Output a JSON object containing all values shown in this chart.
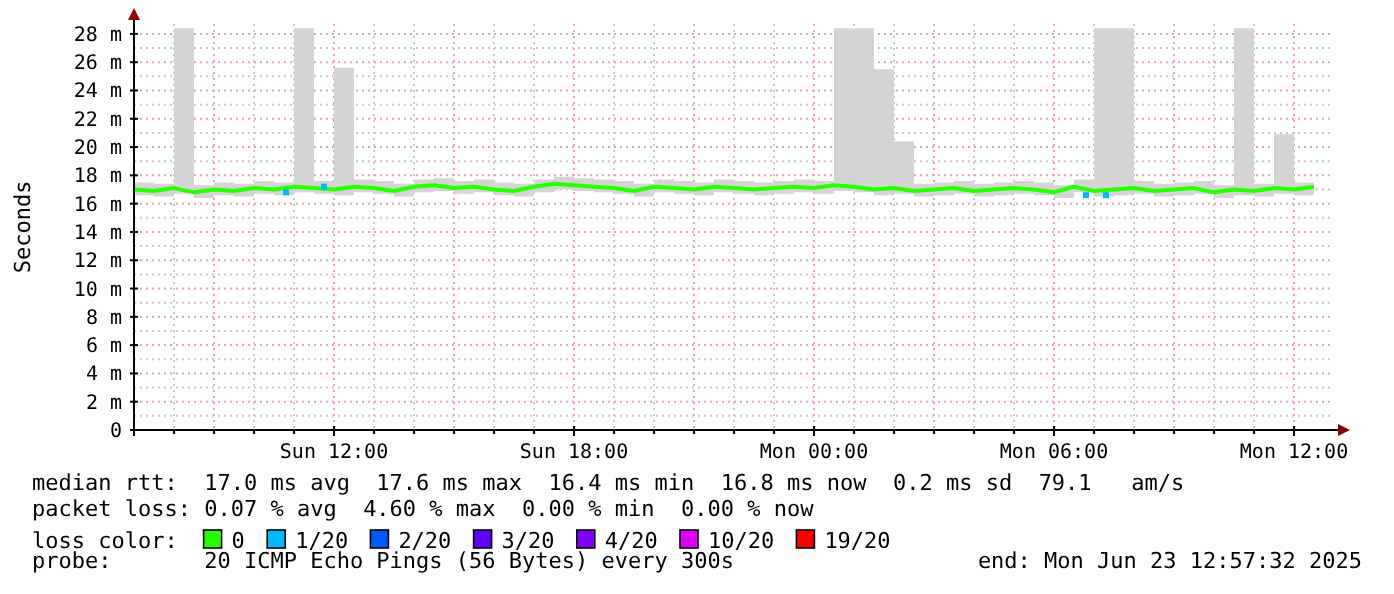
{
  "chart_data": {
    "type": "line",
    "ylabel": "Seconds",
    "legend_title": "loss color:",
    "legend": "bottom",
    "grid": true,
    "xlim": [
      "2025-06-22T07:00",
      "2025-06-23T13:00"
    ],
    "xticks": [
      {
        "value": "2025-06-22T12:00",
        "label": "Sun 12:00"
      },
      {
        "value": "2025-06-22T18:00",
        "label": "Sun 18:00"
      },
      {
        "value": "2025-06-23T00:00",
        "label": "Mon 00:00"
      },
      {
        "value": "2025-06-23T06:00",
        "label": "Mon 06:00"
      },
      {
        "value": "2025-06-23T12:00",
        "label": "Mon 12:00"
      }
    ],
    "ylim": [
      0,
      28.7
    ],
    "yticks": [
      {
        "value": 0,
        "label": "0"
      },
      {
        "value": 2,
        "label": "2 m"
      },
      {
        "value": 4,
        "label": "4 m"
      },
      {
        "value": 6,
        "label": "6 m"
      },
      {
        "value": 8,
        "label": "8 m"
      },
      {
        "value": 10,
        "label": "10 m"
      },
      {
        "value": 12,
        "label": "12 m"
      },
      {
        "value": 14,
        "label": "14 m"
      },
      {
        "value": 16,
        "label": "16 m"
      },
      {
        "value": 18,
        "label": "18 m"
      },
      {
        "value": 20,
        "label": "20 m"
      },
      {
        "value": 22,
        "label": "22 m"
      },
      {
        "value": 24,
        "label": "24 m"
      },
      {
        "value": 26,
        "label": "26 m"
      },
      {
        "value": 28,
        "label": "28 m"
      }
    ],
    "x": [
      "2025-06-22T07:00",
      "2025-06-22T07:30",
      "2025-06-22T08:00",
      "2025-06-22T08:30",
      "2025-06-22T09:00",
      "2025-06-22T09:30",
      "2025-06-22T10:00",
      "2025-06-22T10:30",
      "2025-06-22T11:00",
      "2025-06-22T11:30",
      "2025-06-22T12:00",
      "2025-06-22T12:30",
      "2025-06-22T13:00",
      "2025-06-22T13:30",
      "2025-06-22T14:00",
      "2025-06-22T14:30",
      "2025-06-22T15:00",
      "2025-06-22T15:30",
      "2025-06-22T16:00",
      "2025-06-22T16:30",
      "2025-06-22T17:00",
      "2025-06-22T17:30",
      "2025-06-22T18:00",
      "2025-06-22T18:30",
      "2025-06-22T19:00",
      "2025-06-22T19:30",
      "2025-06-22T20:00",
      "2025-06-22T20:30",
      "2025-06-22T21:00",
      "2025-06-22T21:30",
      "2025-06-22T22:00",
      "2025-06-22T22:30",
      "2025-06-22T23:00",
      "2025-06-22T23:30",
      "2025-06-23T00:00",
      "2025-06-23T00:30",
      "2025-06-23T01:00",
      "2025-06-23T01:30",
      "2025-06-23T02:00",
      "2025-06-23T02:30",
      "2025-06-23T03:00",
      "2025-06-23T03:30",
      "2025-06-23T04:00",
      "2025-06-23T04:30",
      "2025-06-23T05:00",
      "2025-06-23T05:30",
      "2025-06-23T06:00",
      "2025-06-23T06:30",
      "2025-06-23T07:00",
      "2025-06-23T07:30",
      "2025-06-23T08:00",
      "2025-06-23T08:30",
      "2025-06-23T09:00",
      "2025-06-23T09:30",
      "2025-06-23T10:00",
      "2025-06-23T10:30",
      "2025-06-23T11:00",
      "2025-06-23T11:30",
      "2025-06-23T12:00",
      "2025-06-23T12:30"
    ],
    "series": [
      {
        "name": "0",
        "color": "#26ff00",
        "values": [
          17.0,
          16.9,
          17.1,
          16.8,
          17.0,
          16.9,
          17.1,
          17.0,
          17.2,
          17.1,
          17.0,
          17.2,
          17.1,
          16.9,
          17.2,
          17.3,
          17.1,
          17.2,
          17.0,
          16.9,
          17.2,
          17.4,
          17.3,
          17.2,
          17.1,
          16.9,
          17.2,
          17.1,
          17.0,
          17.2,
          17.1,
          17.0,
          17.1,
          17.2,
          17.1,
          17.3,
          17.2,
          17.0,
          17.1,
          16.9,
          17.0,
          17.1,
          16.9,
          17.0,
          17.1,
          17.0,
          16.8,
          17.2,
          16.9,
          17.0,
          17.1,
          16.9,
          17.0,
          17.1,
          16.8,
          17.0,
          16.9,
          17.1,
          17.0,
          17.2
        ],
        "lower": [
          16.6,
          16.5,
          16.7,
          16.4,
          16.6,
          16.5,
          16.7,
          16.6,
          16.8,
          16.7,
          16.6,
          16.8,
          16.7,
          16.5,
          16.8,
          16.9,
          16.7,
          16.8,
          16.6,
          16.5,
          16.8,
          17.0,
          16.9,
          16.8,
          16.7,
          16.5,
          16.8,
          16.7,
          16.6,
          16.8,
          16.7,
          16.6,
          16.7,
          16.8,
          16.7,
          16.9,
          16.8,
          16.6,
          16.7,
          16.5,
          16.6,
          16.7,
          16.5,
          16.6,
          16.7,
          16.6,
          16.4,
          16.8,
          16.5,
          16.6,
          16.7,
          16.5,
          16.6,
          16.7,
          16.4,
          16.6,
          16.5,
          16.7,
          16.6,
          16.8
        ],
        "upper": [
          17.5,
          17.4,
          28.4,
          17.3,
          17.5,
          17.4,
          17.6,
          17.5,
          28.4,
          17.6,
          25.6,
          17.7,
          17.6,
          17.4,
          17.7,
          17.8,
          17.6,
          17.7,
          17.5,
          17.4,
          17.7,
          17.9,
          17.8,
          17.7,
          17.6,
          17.4,
          17.7,
          17.6,
          17.5,
          17.7,
          17.6,
          17.5,
          17.6,
          17.7,
          17.6,
          28.4,
          28.4,
          25.5,
          20.4,
          17.4,
          17.5,
          17.6,
          17.4,
          17.5,
          17.6,
          17.5,
          17.3,
          17.7,
          28.4,
          28.4,
          17.6,
          17.4,
          17.5,
          17.6,
          17.3,
          28.4,
          17.4,
          20.9,
          17.5,
          17.7
        ]
      },
      {
        "name": "1/20",
        "type": "scatter",
        "color": "#00b8ff",
        "x": [
          "2025-06-22T10:48",
          "2025-06-22T11:45",
          "2025-06-23T06:48",
          "2025-06-23T07:18"
        ],
        "values": [
          16.8,
          17.2,
          16.6,
          16.6
        ]
      },
      {
        "name": "2/20",
        "type": "scatter",
        "color": "#0059ff",
        "values": [
          null,
          null,
          null,
          null,
          null,
          null,
          null,
          null,
          null,
          null,
          null,
          null,
          null,
          null,
          null,
          null,
          null,
          null,
          null,
          null,
          null,
          null,
          null,
          null,
          null,
          null,
          null,
          null,
          null,
          null,
          null,
          null,
          null,
          null,
          null,
          null,
          null,
          null,
          null,
          null,
          null,
          null,
          null,
          null,
          null,
          null,
          null,
          null,
          null,
          null,
          null,
          null,
          null,
          null,
          null,
          null,
          null,
          null,
          null,
          null
        ]
      },
      {
        "name": "3/20",
        "type": "scatter",
        "color": "#5e00ff",
        "values": [
          null,
          null,
          null,
          null,
          null,
          null,
          null,
          null,
          null,
          null,
          null,
          null,
          null,
          null,
          null,
          null,
          null,
          null,
          null,
          null,
          null,
          null,
          null,
          null,
          null,
          null,
          null,
          null,
          null,
          null,
          null,
          null,
          null,
          null,
          null,
          null,
          null,
          null,
          null,
          null,
          null,
          null,
          null,
          null,
          null,
          null,
          null,
          null,
          null,
          null,
          null,
          null,
          null,
          null,
          null,
          null,
          null,
          null,
          null,
          null
        ]
      },
      {
        "name": "4/20",
        "type": "scatter",
        "color": "#7e00ff",
        "values": [
          null,
          null,
          null,
          null,
          null,
          null,
          null,
          null,
          null,
          null,
          null,
          null,
          null,
          null,
          null,
          null,
          null,
          null,
          null,
          null,
          null,
          null,
          null,
          null,
          null,
          null,
          null,
          null,
          null,
          null,
          null,
          null,
          null,
          null,
          null,
          null,
          null,
          null,
          null,
          null,
          null,
          null,
          null,
          null,
          null,
          null,
          null,
          null,
          null,
          null,
          null,
          null,
          null,
          null,
          null,
          null,
          null,
          null,
          null,
          null
        ]
      },
      {
        "name": "10/20",
        "type": "scatter",
        "color": "#dd00ff",
        "values": [
          null,
          null,
          null,
          null,
          null,
          null,
          null,
          null,
          null,
          null,
          null,
          null,
          null,
          null,
          null,
          null,
          null,
          null,
          null,
          null,
          null,
          null,
          null,
          null,
          null,
          null,
          null,
          null,
          null,
          null,
          null,
          null,
          null,
          null,
          null,
          null,
          null,
          null,
          null,
          null,
          null,
          null,
          null,
          null,
          null,
          null,
          null,
          null,
          null,
          null,
          null,
          null,
          null,
          null,
          null,
          null,
          null,
          null,
          null,
          null
        ]
      },
      {
        "name": "19/20",
        "type": "scatter",
        "color": "#ff0000",
        "values": [
          null,
          null,
          null,
          null,
          null,
          null,
          null,
          null,
          null,
          null,
          null,
          null,
          null,
          null,
          null,
          null,
          null,
          null,
          null,
          null,
          null,
          null,
          null,
          null,
          null,
          null,
          null,
          null,
          null,
          null,
          null,
          null,
          null,
          null,
          null,
          null,
          null,
          null,
          null,
          null,
          null,
          null,
          null,
          null,
          null,
          null,
          null,
          null,
          null,
          null,
          null,
          null,
          null,
          null,
          null,
          null,
          null,
          null,
          null,
          null
        ]
      }
    ],
    "annotations": [
      "median rtt:  17.0 ms avg  17.6 ms max  16.4 ms min  16.8 ms now  0.2 ms sd  79.1   am/s",
      "packet loss: 0.07 % avg  4.60 % max  0.00 % min  0.00 % now",
      "probe:       20 ICMP Echo Pings (56 Bytes) every 300s",
      "end: Mon Jun 23 12:57:32 2025"
    ]
  }
}
